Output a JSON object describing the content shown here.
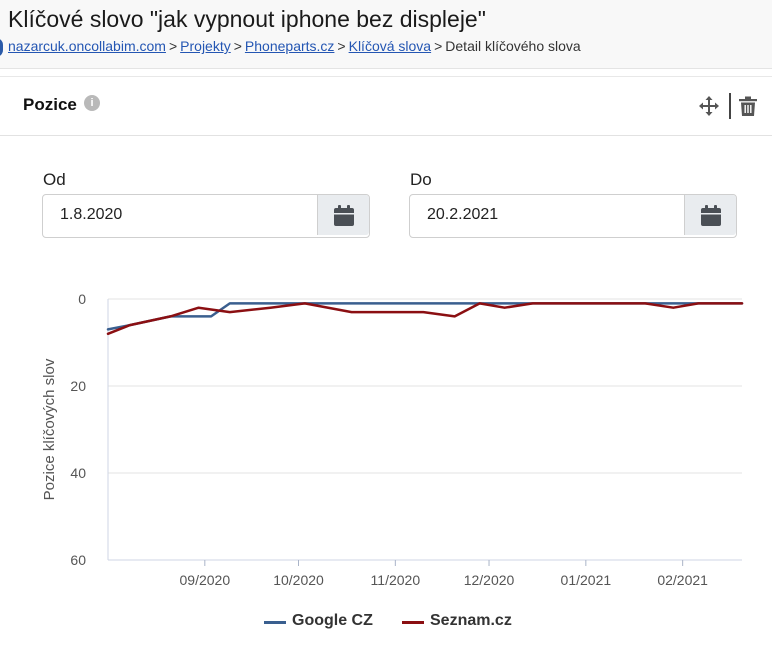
{
  "page": {
    "title": "Klíčové slovo \"jak vypnout iphone bez displeje\"",
    "breadcrumb": [
      {
        "label": "nazarcuk.oncollabim.com",
        "link": true
      },
      {
        "label": "Projekty",
        "link": true
      },
      {
        "label": "Phoneparts.cz",
        "link": true
      },
      {
        "label": "Klíčová slova",
        "link": true
      },
      {
        "label": "Detail klíčového slova",
        "link": false
      }
    ]
  },
  "card": {
    "title": "Pozice",
    "info_glyph": "i",
    "icons": {
      "info": "info-icon",
      "move": "move-icon",
      "delete": "trash-icon"
    }
  },
  "filters": {
    "from": {
      "label": "Od",
      "value": "1.8.2020",
      "icon": "calendar-icon"
    },
    "to": {
      "label": "Do",
      "value": "20.2.2021",
      "icon": "calendar-icon"
    }
  },
  "chart_data": {
    "type": "line",
    "title": "",
    "xlabel": "",
    "ylabel": "Pozice klíčových slov",
    "y_inverted": true,
    "ylim": [
      0,
      60
    ],
    "yticks": [
      0,
      20,
      40,
      60
    ],
    "xlim": [
      "2020-08-01",
      "2021-02-20"
    ],
    "xticks": [
      {
        "date": "2020-09-01",
        "label": "09/2020"
      },
      {
        "date": "2020-10-01",
        "label": "10/2020"
      },
      {
        "date": "2020-11-01",
        "label": "11/2020"
      },
      {
        "date": "2020-12-01",
        "label": "12/2020"
      },
      {
        "date": "2021-01-01",
        "label": "01/2021"
      },
      {
        "date": "2021-02-01",
        "label": "02/2021"
      }
    ],
    "grid": true,
    "legend_position": "bottom",
    "series": [
      {
        "name": "Google CZ",
        "color": "#3a5f8f",
        "points": [
          [
            "2020-08-01",
            7
          ],
          [
            "2020-08-08",
            6
          ],
          [
            "2020-08-21",
            4
          ],
          [
            "2020-09-03",
            4
          ],
          [
            "2020-09-09",
            1
          ],
          [
            "2020-10-15",
            1
          ],
          [
            "2020-11-26",
            1
          ],
          [
            "2020-12-05",
            1
          ],
          [
            "2021-01-20",
            1
          ],
          [
            "2021-01-29",
            1
          ],
          [
            "2021-02-20",
            1
          ]
        ]
      },
      {
        "name": "Seznam.cz",
        "color": "#8b0f12",
        "points": [
          [
            "2020-08-01",
            8
          ],
          [
            "2020-08-08",
            6
          ],
          [
            "2020-08-21",
            4
          ],
          [
            "2020-08-30",
            2
          ],
          [
            "2020-09-09",
            3
          ],
          [
            "2020-09-22",
            2
          ],
          [
            "2020-10-03",
            1
          ],
          [
            "2020-10-18",
            3
          ],
          [
            "2020-11-02",
            3
          ],
          [
            "2020-11-10",
            3
          ],
          [
            "2020-11-20",
            4
          ],
          [
            "2020-11-28",
            1
          ],
          [
            "2020-12-06",
            2
          ],
          [
            "2020-12-15",
            1
          ],
          [
            "2021-01-20",
            1
          ],
          [
            "2021-01-29",
            2
          ],
          [
            "2021-02-06",
            1
          ],
          [
            "2021-02-20",
            1
          ]
        ]
      }
    ]
  }
}
